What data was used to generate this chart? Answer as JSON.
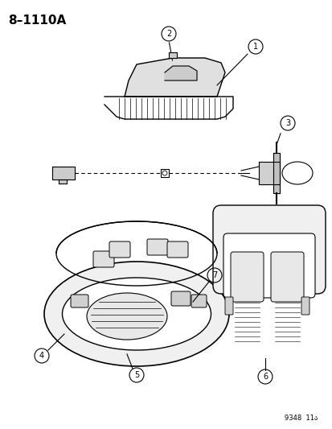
{
  "title": "8–1110A",
  "footer": "9348  11ა",
  "background_color": "#ffffff",
  "line_color": "#000000",
  "callout_circles": [
    1,
    2,
    3,
    4,
    5,
    6,
    7
  ],
  "fig_width": 4.14,
  "fig_height": 5.33,
  "dpi": 100
}
